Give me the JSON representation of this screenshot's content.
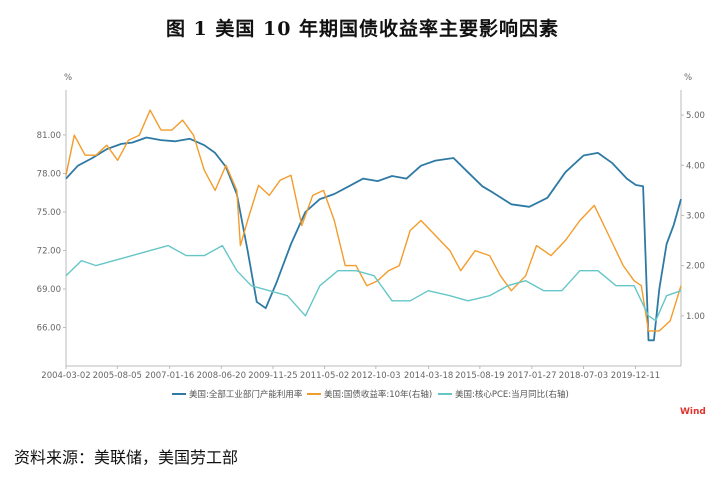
{
  "title": "图 1  美国 10 年期国债收益率主要影响因素",
  "source": "资料来源：美联储，美国劳工部",
  "watermark": "Wind",
  "chart_data": {
    "type": "line",
    "left_axis": {
      "unit": "%",
      "min": 63.0,
      "max": 84.5,
      "ticks": [
        "66.00",
        "69.00",
        "72.00",
        "75.00",
        "78.00",
        "81.00"
      ],
      "tick_values": [
        66,
        69,
        72,
        75,
        78,
        81
      ]
    },
    "right_axis": {
      "unit": "%",
      "min": 0.0,
      "max": 5.5,
      "ticks": [
        "1.00",
        "2.00",
        "3.00",
        "4.00",
        "5.00"
      ],
      "tick_values": [
        1,
        2,
        3,
        4,
        5
      ]
    },
    "x_ticks": [
      "2004-03-02",
      "2005-08-05",
      "2007-01-16",
      "2008-06-20",
      "2009-11-25",
      "2011-05-02",
      "2012-10-03",
      "2014-03-18",
      "2015-08-19",
      "2017-01-27",
      "2018-07-03",
      "2019-12-11"
    ],
    "x_range": [
      2004.17,
      2021.2
    ],
    "x_tick_values": [
      2004.17,
      2005.59,
      2007.04,
      2008.47,
      2009.9,
      2011.33,
      2012.75,
      2014.21,
      2015.63,
      2017.07,
      2018.5,
      2019.94
    ],
    "grid": false,
    "legend_position": "bottom",
    "series": [
      {
        "name": "美国:全部工业部门产能利用率",
        "axis": "left",
        "color": "#2e7aa5",
        "x": [
          2004.17,
          2004.5,
          2004.9,
          2005.3,
          2005.7,
          2006.0,
          2006.4,
          2006.8,
          2007.2,
          2007.6,
          2008.0,
          2008.3,
          2008.6,
          2008.9,
          2009.2,
          2009.45,
          2009.7,
          2010.0,
          2010.4,
          2010.8,
          2011.2,
          2011.6,
          2012.0,
          2012.4,
          2012.8,
          2013.2,
          2013.6,
          2014.0,
          2014.4,
          2014.9,
          2015.3,
          2015.7,
          2016.0,
          2016.5,
          2017.0,
          2017.5,
          2018.0,
          2018.5,
          2018.9,
          2019.3,
          2019.7,
          2019.95,
          2020.15,
          2020.3,
          2020.45,
          2020.6,
          2020.8,
          2021.0,
          2021.2
        ],
        "values": [
          77.6,
          78.6,
          79.2,
          79.9,
          80.3,
          80.4,
          80.8,
          80.6,
          80.5,
          80.7,
          80.2,
          79.6,
          78.5,
          76.4,
          72.0,
          68.0,
          67.5,
          69.5,
          72.5,
          75.0,
          76.0,
          76.4,
          77.0,
          77.6,
          77.4,
          77.8,
          77.6,
          78.6,
          79.0,
          79.2,
          78.1,
          77.0,
          76.5,
          75.6,
          75.4,
          76.1,
          78.1,
          79.4,
          79.6,
          78.8,
          77.6,
          77.1,
          77.0,
          65.0,
          65.0,
          69.0,
          72.5,
          74.0,
          76.0
        ]
      },
      {
        "name": "美国:国债收益率:10年(右轴)",
        "axis": "right",
        "color": "#f39c2b",
        "x": [
          2004.17,
          2004.4,
          2004.7,
          2005.0,
          2005.3,
          2005.6,
          2005.9,
          2006.2,
          2006.5,
          2006.8,
          2007.1,
          2007.4,
          2007.7,
          2008.0,
          2008.3,
          2008.6,
          2008.9,
          2009.0,
          2009.2,
          2009.5,
          2009.8,
          2010.1,
          2010.4,
          2010.7,
          2011.0,
          2011.3,
          2011.6,
          2011.9,
          2012.2,
          2012.5,
          2012.8,
          2013.1,
          2013.4,
          2013.7,
          2014.0,
          2014.4,
          2014.8,
          2015.1,
          2015.5,
          2015.9,
          2016.2,
          2016.5,
          2016.9,
          2017.2,
          2017.6,
          2018.0,
          2018.4,
          2018.8,
          2019.2,
          2019.6,
          2019.9,
          2020.1,
          2020.3,
          2020.6,
          2020.9,
          2021.2
        ],
        "values": [
          3.8,
          4.6,
          4.2,
          4.2,
          4.4,
          4.1,
          4.5,
          4.6,
          5.1,
          4.7,
          4.7,
          4.9,
          4.6,
          3.9,
          3.5,
          4.0,
          3.5,
          2.4,
          2.9,
          3.6,
          3.4,
          3.7,
          3.8,
          2.8,
          3.4,
          3.5,
          2.9,
          2.0,
          2.0,
          1.6,
          1.7,
          1.9,
          2.0,
          2.7,
          2.9,
          2.6,
          2.3,
          1.9,
          2.3,
          2.2,
          1.8,
          1.5,
          1.8,
          2.4,
          2.2,
          2.5,
          2.9,
          3.2,
          2.6,
          2.0,
          1.7,
          1.6,
          0.7,
          0.7,
          0.9,
          1.6
        ]
      },
      {
        "name": "美国:核心PCE:当月同比(右轴)",
        "axis": "right",
        "color": "#66c6c7",
        "x": [
          2004.17,
          2004.6,
          2005.0,
          2005.5,
          2006.0,
          2006.5,
          2007.0,
          2007.5,
          2008.0,
          2008.5,
          2008.9,
          2009.3,
          2009.8,
          2010.3,
          2010.8,
          2011.2,
          2011.7,
          2012.2,
          2012.7,
          2013.2,
          2013.7,
          2014.2,
          2014.8,
          2015.3,
          2015.9,
          2016.4,
          2016.9,
          2017.4,
          2017.9,
          2018.4,
          2018.9,
          2019.4,
          2019.9,
          2020.3,
          2020.5,
          2020.8,
          2021.2
        ],
        "values": [
          1.8,
          2.1,
          2.0,
          2.1,
          2.2,
          2.3,
          2.4,
          2.2,
          2.2,
          2.4,
          1.9,
          1.6,
          1.5,
          1.4,
          1.0,
          1.6,
          1.9,
          1.9,
          1.8,
          1.3,
          1.3,
          1.5,
          1.4,
          1.3,
          1.4,
          1.6,
          1.7,
          1.5,
          1.5,
          1.9,
          1.9,
          1.6,
          1.6,
          1.0,
          0.9,
          1.4,
          1.5
        ]
      }
    ]
  }
}
